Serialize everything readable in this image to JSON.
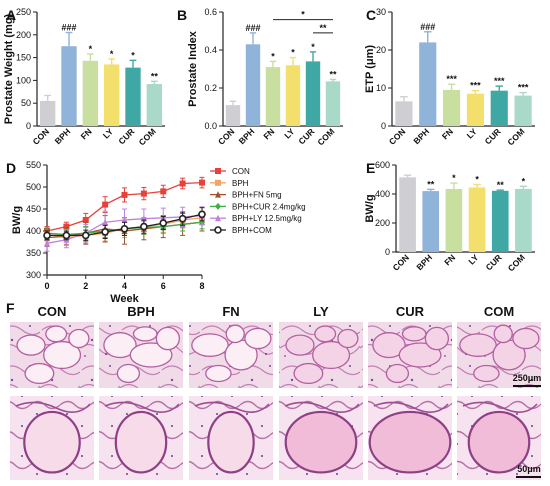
{
  "chart_data": [
    {
      "panel": "A",
      "type": "bar",
      "ylabel": "Prostate Weight (mg)",
      "ylim": [
        0,
        250
      ],
      "yticks": [
        0,
        50,
        100,
        150,
        200,
        250
      ],
      "categories": [
        "CON",
        "BPH",
        "FN",
        "LY",
        "CUR",
        "COM"
      ],
      "values": [
        55,
        175,
        143,
        135,
        128,
        92
      ],
      "errors": [
        12,
        30,
        15,
        12,
        16,
        6
      ],
      "colors": [
        "#cfcfd3",
        "#8fb3d9",
        "#c9dfa0",
        "#f3df6b",
        "#3fa7a4",
        "#a9d9c9"
      ],
      "significance": [
        "",
        "###",
        "*",
        "*",
        "*",
        "**"
      ]
    },
    {
      "panel": "B",
      "type": "bar",
      "ylabel": "Prostate Index",
      "ylim": [
        0,
        0.6
      ],
      "yticks": [
        0,
        0.2,
        0.4,
        0.6
      ],
      "yticklabels": [
        "0.0",
        "0.2",
        "0.4",
        "0.6"
      ],
      "categories": [
        "CON",
        "BPH",
        "FN",
        "LY",
        "CUR",
        "COM"
      ],
      "values": [
        0.11,
        0.43,
        0.31,
        0.32,
        0.34,
        0.235
      ],
      "errors": [
        0.02,
        0.06,
        0.03,
        0.04,
        0.05,
        0.01
      ],
      "colors": [
        "#cfcfd3",
        "#8fb3d9",
        "#c9dfa0",
        "#f3df6b",
        "#3fa7a4",
        "#a9d9c9"
      ],
      "significance": [
        "",
        "###",
        "*",
        "*",
        "*",
        "**"
      ],
      "brackets": [
        {
          "from": "FN",
          "to": "COM",
          "label": "*",
          "y": 0.56
        },
        {
          "from": "CUR",
          "to": "COM",
          "label": "**",
          "y": 0.49
        }
      ]
    },
    {
      "panel": "C",
      "type": "bar",
      "ylabel": "ETP (μm)",
      "ylim": [
        0,
        30
      ],
      "yticks": [
        0,
        10,
        20,
        30
      ],
      "categories": [
        "CON",
        "BPH",
        "FN",
        "LY",
        "CUR",
        "COM"
      ],
      "values": [
        6.5,
        22,
        9.5,
        8.5,
        9.3,
        8
      ],
      "errors": [
        1.2,
        2.8,
        1.5,
        0.8,
        1.2,
        0.8
      ],
      "colors": [
        "#cfcfd3",
        "#8fb3d9",
        "#c9dfa0",
        "#f3df6b",
        "#3fa7a4",
        "#a9d9c9"
      ],
      "significance": [
        "",
        "###",
        "***",
        "***",
        "***",
        "***"
      ]
    },
    {
      "panel": "D",
      "type": "line",
      "xlabel": "Week",
      "ylabel": "BW/g",
      "xlim": [
        0,
        8
      ],
      "ylim": [
        300,
        550
      ],
      "xticks": [
        0,
        2,
        4,
        6,
        8
      ],
      "yticks": [
        300,
        350,
        400,
        450,
        500,
        550
      ],
      "x": [
        0,
        1,
        2,
        3,
        4,
        5,
        6,
        7,
        8
      ],
      "series": [
        {
          "name": "CON",
          "color": "#e8403a",
          "marker": "square",
          "values": [
            400,
            410,
            425,
            460,
            482,
            485,
            490,
            508,
            510
          ],
          "errors": [
            10,
            10,
            15,
            18,
            16,
            14,
            14,
            12,
            12
          ]
        },
        {
          "name": "BPH",
          "color": "#f4a460",
          "marker": "square",
          "values": [
            392,
            385,
            390,
            395,
            405,
            410,
            415,
            425,
            430
          ],
          "errors": [
            15,
            15,
            18,
            18,
            20,
            18,
            18,
            18,
            15
          ]
        },
        {
          "name": "BPH+FN 5mg",
          "color": "#a0522d",
          "marker": "triangle",
          "values": [
            385,
            388,
            395,
            405,
            400,
            405,
            410,
            415,
            420
          ],
          "errors": [
            20,
            20,
            25,
            30,
            30,
            25,
            25,
            25,
            20
          ]
        },
        {
          "name": "BPH+CUR 2.4mg/kg",
          "color": "#3cb043",
          "marker": "diamond",
          "values": [
            395,
            392,
            395,
            400,
            405,
            408,
            410,
            415,
            420
          ],
          "errors": [
            12,
            12,
            15,
            15,
            15,
            15,
            15,
            15,
            15
          ]
        },
        {
          "name": "BPH+LY 12.5mg/kg",
          "color": "#c080e0",
          "marker": "triangle",
          "values": [
            372,
            380,
            395,
            420,
            425,
            428,
            430,
            432,
            435
          ],
          "errors": [
            18,
            18,
            20,
            25,
            25,
            22,
            22,
            22,
            20
          ]
        },
        {
          "name": "BPH+COM",
          "color": "#222222",
          "marker": "circle",
          "values": [
            390,
            390,
            390,
            398,
            405,
            410,
            418,
            428,
            438
          ],
          "errors": [
            10,
            10,
            12,
            15,
            15,
            15,
            15,
            15,
            15
          ]
        }
      ]
    },
    {
      "panel": "E",
      "type": "bar",
      "ylabel": "BW/g",
      "ylim": [
        0,
        600
      ],
      "yticks": [
        0,
        200,
        400,
        600
      ],
      "categories": [
        "CON",
        "BPH",
        "FN",
        "LY",
        "CUR",
        "COM"
      ],
      "values": [
        515,
        420,
        435,
        445,
        422,
        435
      ],
      "errors": [
        15,
        12,
        40,
        20,
        5,
        18
      ],
      "colors": [
        "#cfcfd3",
        "#8fb3d9",
        "#c9dfa0",
        "#f3df6b",
        "#3fa7a4",
        "#a9d9c9"
      ],
      "significance": [
        "",
        "**",
        "*",
        "*",
        "**",
        "*"
      ]
    }
  ],
  "histology": {
    "panel": "F",
    "columns": [
      "CON",
      "BPH",
      "FN",
      "LY",
      "CUR",
      "COM"
    ],
    "scale_top": "250μm",
    "scale_bottom": "50μm"
  }
}
